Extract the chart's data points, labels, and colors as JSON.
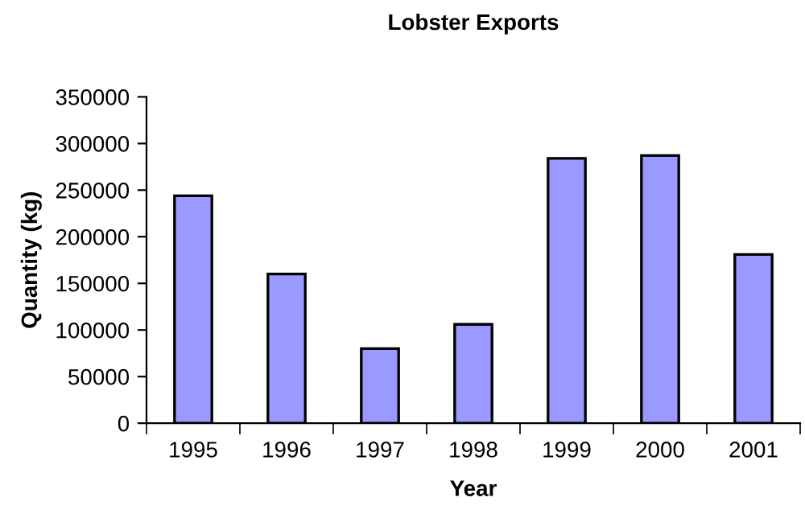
{
  "chart_data": {
    "type": "bar",
    "title": "Lobster Exports",
    "xlabel": "Year",
    "ylabel": "Quantity (kg)",
    "categories": [
      "1995",
      "1996",
      "1997",
      "1998",
      "1999",
      "2000",
      "2001"
    ],
    "values": [
      244000,
      160000,
      80000,
      106000,
      284000,
      287000,
      181000
    ],
    "color": "#9999ff",
    "ylim": [
      0,
      350000
    ],
    "yticks": [
      0,
      50000,
      100000,
      150000,
      200000,
      250000,
      300000,
      350000
    ],
    "grid": false,
    "legend": false
  }
}
